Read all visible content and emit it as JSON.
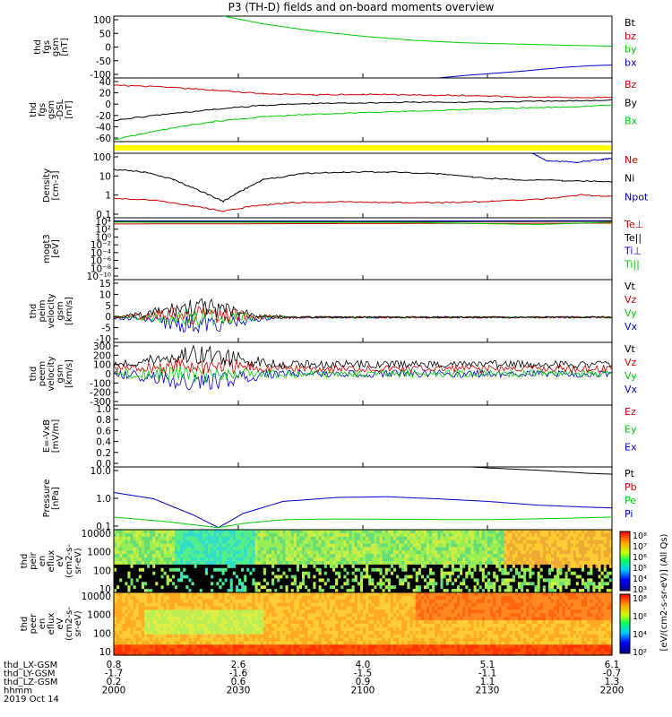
{
  "title": "P3 (TH-D) fields and on-board moments overview",
  "colors": {
    "black": "#000000",
    "red": "#cc0000",
    "green": "#00cc00",
    "blue": "#0000cc",
    "yellow": "#ffff00"
  },
  "chart_data": [
    {
      "type": "line",
      "id": "fgs",
      "ylabel": [
        "thd",
        "fgs",
        "gsm",
        "[nT]"
      ],
      "ylim": [
        -100,
        100
      ],
      "yticks": [
        "100",
        "50",
        "0",
        "-50",
        "-100"
      ],
      "legend": [
        {
          "label": "Bt",
          "color": "black"
        },
        {
          "label": "bz",
          "color": "red"
        },
        {
          "label": "by",
          "color": "green"
        },
        {
          "label": "bx",
          "color": "blue"
        }
      ],
      "series": [
        {
          "color": "green",
          "points": [
            [
              0.22,
              100
            ],
            [
              0.3,
              75
            ],
            [
              0.4,
              52
            ],
            [
              0.5,
              35
            ],
            [
              0.6,
              22
            ],
            [
              0.7,
              14
            ],
            [
              0.8,
              10
            ],
            [
              0.9,
              6
            ],
            [
              1.0,
              3
            ]
          ]
        },
        {
          "color": "blue",
          "points": [
            [
              0.65,
              -100
            ],
            [
              0.72,
              -90
            ],
            [
              0.82,
              -78
            ],
            [
              0.9,
              -66
            ],
            [
              0.96,
              -60
            ],
            [
              1.0,
              -58
            ]
          ]
        }
      ]
    },
    {
      "type": "line",
      "id": "fgs_dsl",
      "ylabel": [
        "thd",
        "fgs",
        "gsm",
        "-DSL",
        "[nT]"
      ],
      "ylim": [
        -65,
        40
      ],
      "yticks": [
        "40",
        "20",
        "0",
        "-20",
        "-40",
        "-60"
      ],
      "legend": [
        {
          "label": "Bz",
          "color": "red"
        },
        {
          "label": "By",
          "color": "black"
        },
        {
          "label": "Bx",
          "color": "green"
        }
      ],
      "series": [
        {
          "color": "red",
          "points": [
            [
              0,
              28
            ],
            [
              0.1,
              25
            ],
            [
              0.2,
              20
            ],
            [
              0.3,
              14
            ],
            [
              0.4,
              12
            ],
            [
              0.5,
              13
            ],
            [
              0.6,
              12
            ],
            [
              0.7,
              11
            ],
            [
              0.8,
              9
            ],
            [
              0.9,
              8
            ],
            [
              1.0,
              8
            ]
          ]
        },
        {
          "color": "black",
          "points": [
            [
              0,
              -30
            ],
            [
              0.1,
              -20
            ],
            [
              0.2,
              -12
            ],
            [
              0.3,
              -5
            ],
            [
              0.4,
              -2
            ],
            [
              0.5,
              -1
            ],
            [
              0.6,
              0
            ],
            [
              0.7,
              0
            ],
            [
              0.8,
              1
            ],
            [
              0.9,
              2
            ],
            [
              1.0,
              4
            ]
          ]
        },
        {
          "color": "green",
          "points": [
            [
              0,
              -62
            ],
            [
              0.1,
              -45
            ],
            [
              0.2,
              -32
            ],
            [
              0.3,
              -24
            ],
            [
              0.4,
              -20
            ],
            [
              0.5,
              -17
            ],
            [
              0.6,
              -15
            ],
            [
              0.7,
              -12
            ],
            [
              0.8,
              -10
            ],
            [
              0.9,
              -8
            ],
            [
              1.0,
              -5
            ]
          ]
        }
      ]
    },
    {
      "type": "bar",
      "id": "mode_bar",
      "color": "yellow"
    },
    {
      "type": "line",
      "id": "density",
      "ylabel": [
        "Density",
        "[cm-3]"
      ],
      "ylim": [
        0.1,
        200
      ],
      "log": true,
      "yticks": [
        "100",
        "10",
        "1",
        "0.1"
      ],
      "legend": [
        {
          "label": "Ne",
          "color": "red"
        },
        {
          "label": "Ni",
          "color": "black"
        },
        {
          "label": "Npot",
          "color": "blue"
        }
      ],
      "series": [
        {
          "color": "black",
          "points": [
            [
              0,
              30
            ],
            [
              0.06,
              22
            ],
            [
              0.12,
              9
            ],
            [
              0.18,
              2
            ],
            [
              0.22,
              0.7
            ],
            [
              0.25,
              2
            ],
            [
              0.3,
              9
            ],
            [
              0.38,
              18
            ],
            [
              0.46,
              22
            ],
            [
              0.55,
              22
            ],
            [
              0.65,
              18
            ],
            [
              0.72,
              12
            ],
            [
              0.8,
              9
            ],
            [
              0.9,
              8
            ],
            [
              1.0,
              7
            ]
          ]
        },
        {
          "color": "red",
          "points": [
            [
              0,
              1
            ],
            [
              0.08,
              0.8
            ],
            [
              0.16,
              0.4
            ],
            [
              0.22,
              0.22
            ],
            [
              0.28,
              0.4
            ],
            [
              0.36,
              0.6
            ],
            [
              0.46,
              0.65
            ],
            [
              0.56,
              0.6
            ],
            [
              0.66,
              0.6
            ],
            [
              0.76,
              0.7
            ],
            [
              0.86,
              0.9
            ],
            [
              0.94,
              1.5
            ],
            [
              1.0,
              1.2
            ]
          ]
        },
        {
          "color": "blue",
          "points": [
            [
              0.84,
              200
            ],
            [
              0.87,
              80
            ],
            [
              0.93,
              70
            ],
            [
              0.98,
              95
            ],
            [
              1.0,
              110
            ]
          ]
        }
      ]
    },
    {
      "type": "line",
      "id": "temperature",
      "ylabel": [
        "mogt3",
        "[eV]"
      ],
      "ylim": [
        1e-10,
        10000
      ],
      "log": true,
      "yticks": [
        "10⁴",
        "10²",
        "10⁰",
        "10⁻²",
        "10⁻⁴",
        "10⁻⁶",
        "10⁻⁸",
        "10⁻¹⁰"
      ],
      "legend": [
        {
          "label": "Te⊥",
          "color": "red"
        },
        {
          "label": "Te||",
          "color": "black"
        },
        {
          "label": "Ti⊥",
          "color": "blue"
        },
        {
          "label": "Ti||",
          "color": "green"
        }
      ],
      "series": [
        {
          "color": "blue",
          "points": [
            [
              0,
              2000
            ],
            [
              0.5,
              1800
            ],
            [
              1.0,
              2200
            ]
          ]
        },
        {
          "color": "black",
          "points": [
            [
              0,
              1500
            ],
            [
              0.5,
              1300
            ],
            [
              1.0,
              1600
            ]
          ]
        },
        {
          "color": "red",
          "points": [
            [
              0,
              400
            ],
            [
              0.5,
              500
            ],
            [
              1.0,
              600
            ]
          ]
        },
        {
          "color": "green",
          "points": [
            [
              0,
              1000
            ],
            [
              0.6,
              900
            ],
            [
              0.85,
              300
            ],
            [
              1.0,
              1000
            ]
          ]
        }
      ]
    },
    {
      "type": "line",
      "id": "peim_vel",
      "ylabel": [
        "thd",
        "peim",
        "velocity",
        "gsm",
        "[km/s]"
      ],
      "ylim": [
        -10,
        15
      ],
      "yticks": [
        "15",
        "10",
        "5",
        "0",
        "-5",
        "-10"
      ],
      "legend": [
        {
          "label": "Vt",
          "color": "black"
        },
        {
          "label": "Vz",
          "color": "red"
        },
        {
          "label": "Vy",
          "color": "green"
        },
        {
          "label": "Vx",
          "color": "blue"
        }
      ],
      "noisy": true
    },
    {
      "type": "line",
      "id": "peem_vel",
      "ylabel": [
        "thd",
        "peem",
        "velocity",
        "gsm",
        "[km/s]"
      ],
      "ylim": [
        -300,
        300
      ],
      "yticks": [
        "300",
        "200",
        "100",
        "0",
        "-100",
        "-200",
        "-300"
      ],
      "legend": [
        {
          "label": "Vt",
          "color": "black"
        },
        {
          "label": "Vz",
          "color": "red"
        },
        {
          "label": "Vy",
          "color": "green"
        },
        {
          "label": "Vx",
          "color": "blue"
        }
      ],
      "noisy": true
    },
    {
      "type": "line",
      "id": "efield",
      "ylabel": [
        "E=-VxB",
        "[mV/m]"
      ],
      "ylim": [
        0,
        1
      ],
      "yticks": [
        "1.0",
        "0.8",
        "0.6",
        "0.4",
        "0.2",
        "0.0"
      ],
      "legend": [
        {
          "label": "Ez",
          "color": "red"
        },
        {
          "label": "Ey",
          "color": "green"
        },
        {
          "label": "Ex",
          "color": "blue"
        }
      ]
    },
    {
      "type": "line",
      "id": "pressure",
      "ylabel": [
        "Pressure",
        "[nPa]"
      ],
      "ylim": [
        0.02,
        20
      ],
      "log": true,
      "yticks": [
        "10.0",
        "1.0",
        "0.1"
      ],
      "legend": [
        {
          "label": "Pt",
          "color": "black"
        },
        {
          "label": "Pb",
          "color": "red"
        },
        {
          "label": "Pe",
          "color": "green"
        },
        {
          "label": "Pi",
          "color": "blue"
        }
      ],
      "series": [
        {
          "color": "black",
          "points": [
            [
              0.65,
              25
            ],
            [
              0.75,
              18
            ],
            [
              0.85,
              14
            ],
            [
              0.95,
              10
            ],
            [
              1.0,
              9
            ]
          ]
        },
        {
          "color": "blue",
          "points": [
            [
              0,
              1.2
            ],
            [
              0.08,
              0.6
            ],
            [
              0.16,
              0.1
            ],
            [
              0.21,
              0.025
            ],
            [
              0.26,
              0.12
            ],
            [
              0.34,
              0.45
            ],
            [
              0.45,
              0.7
            ],
            [
              0.55,
              0.75
            ],
            [
              0.65,
              0.6
            ],
            [
              0.75,
              0.45
            ],
            [
              0.85,
              0.3
            ],
            [
              0.95,
              0.24
            ],
            [
              1.0,
              0.22
            ]
          ]
        },
        {
          "color": "green",
          "points": [
            [
              0,
              0.08
            ],
            [
              0.1,
              0.05
            ],
            [
              0.18,
              0.03
            ],
            [
              0.21,
              0.025
            ],
            [
              0.26,
              0.04
            ],
            [
              0.34,
              0.06
            ],
            [
              0.45,
              0.065
            ],
            [
              0.6,
              0.062
            ],
            [
              0.75,
              0.06
            ],
            [
              0.9,
              0.07
            ],
            [
              1.0,
              0.08
            ]
          ]
        }
      ]
    },
    {
      "type": "heatmap",
      "id": "peir_spec",
      "ylabel": [
        "thd",
        "peir",
        "en",
        "eflux",
        "eV",
        "(cm2-s-",
        "sr-eV)"
      ],
      "yticks": [
        "10000",
        "1000",
        "100",
        "10"
      ],
      "variant": "ion"
    },
    {
      "type": "heatmap",
      "id": "peer_spec",
      "ylabel": [
        "thd",
        "peer",
        "en",
        "eflux",
        "eV",
        "(cm2-s-",
        "sr-eV)"
      ],
      "yticks": [
        "10000",
        "1000",
        "100",
        "10"
      ],
      "variant": "electron"
    }
  ],
  "colorbars": [
    {
      "ticks": [
        "10⁸",
        "10⁷",
        "10⁶",
        "10⁵",
        "10⁴",
        "10³"
      ]
    },
    {
      "ticks": [
        "10⁸",
        "10⁶",
        "10⁴",
        "10²"
      ]
    }
  ],
  "colorbar_label": "[eV/(cm2-s-sr-eV)] (All Qs)",
  "xaxis": {
    "ticks": [
      {
        "col": [
          "0.8",
          "-1.7",
          "0.2",
          "2000"
        ]
      },
      {
        "col": [
          "2.6",
          "-1.6",
          "0.6",
          "2030"
        ]
      },
      {
        "col": [
          "4.0",
          "-1.5",
          "0.9",
          "2100"
        ]
      },
      {
        "col": [
          "5.1",
          "-1.1",
          "1.1",
          "2130"
        ]
      },
      {
        "col": [
          "6.1",
          "-0.7",
          "1.3",
          "2200"
        ]
      }
    ],
    "row_labels": [
      "thd_LX-GSM",
      "thd_LY-GSM",
      "thd_LZ-GSM",
      "hhmm"
    ],
    "date": "2019 Oct 14"
  }
}
